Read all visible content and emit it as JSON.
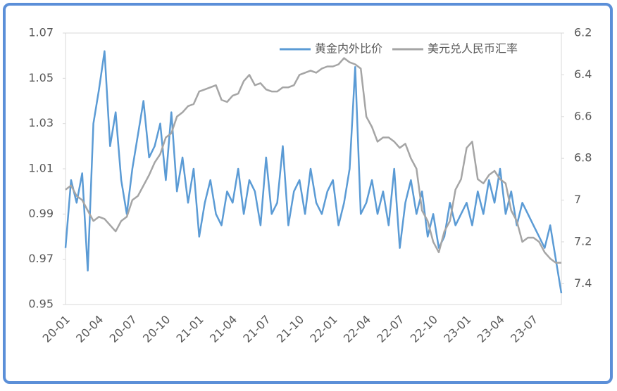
{
  "chart_data": {
    "type": "line",
    "categories": [
      "20-01",
      null,
      null,
      null,
      null,
      null,
      "20-04",
      null,
      null,
      null,
      null,
      null,
      "20-07",
      null,
      null,
      null,
      null,
      null,
      "20-10",
      null,
      null,
      null,
      null,
      null,
      "21-01",
      null,
      null,
      null,
      null,
      null,
      "21-04",
      null,
      null,
      null,
      null,
      null,
      "21-07",
      null,
      null,
      null,
      null,
      null,
      "21-10",
      null,
      null,
      null,
      null,
      null,
      "22-01",
      null,
      null,
      null,
      null,
      null,
      "22-04",
      null,
      null,
      null,
      null,
      null,
      "22-07",
      null,
      null,
      null,
      null,
      null,
      "22-10",
      null,
      null,
      null,
      null,
      null,
      "23-01",
      null,
      null,
      null,
      null,
      null,
      "23-04",
      null,
      null,
      null,
      null,
      null,
      "23-07",
      null,
      null,
      null,
      null,
      null
    ],
    "series": [
      {
        "name": "黄金内外比价",
        "color": "#5b9bd5",
        "values": [
          0.975,
          1.005,
          0.995,
          1.008,
          0.965,
          1.03,
          1.045,
          1.062,
          1.02,
          1.035,
          1.005,
          0.99,
          1.01,
          1.025,
          1.04,
          1.015,
          1.02,
          1.03,
          1.005,
          1.035,
          1.0,
          1.015,
          0.995,
          1.01,
          0.98,
          0.995,
          1.005,
          0.99,
          0.985,
          1.0,
          0.995,
          1.01,
          0.99,
          1.005,
          1.0,
          0.985,
          1.015,
          0.99,
          0.995,
          1.02,
          0.985,
          1.0,
          1.005,
          0.99,
          1.01,
          0.995,
          0.99,
          1.0,
          1.005,
          0.985,
          0.995,
          1.01,
          1.055,
          0.99,
          0.995,
          1.005,
          0.99,
          1.0,
          0.985,
          1.01,
          0.975,
          0.995,
          1.005,
          0.99,
          1.0,
          0.98,
          0.99,
          0.975,
          0.98,
          0.995,
          0.985,
          0.99,
          0.995,
          0.985,
          1.0,
          0.99,
          1.005,
          0.995,
          1.01,
          0.99,
          1.0,
          0.985,
          0.995,
          0.99,
          0.985,
          0.98,
          0.975,
          0.985,
          0.97,
          0.955
        ]
      },
      {
        "name": "美元兑人民币汇率",
        "color": "#a5a5a5",
        "axis": "y2",
        "values": [
          6.95,
          6.93,
          6.98,
          7.0,
          7.05,
          7.1,
          7.08,
          7.09,
          7.12,
          7.15,
          7.1,
          7.08,
          7.0,
          6.98,
          6.93,
          6.88,
          6.82,
          6.78,
          6.7,
          6.68,
          6.6,
          6.58,
          6.55,
          6.54,
          6.48,
          6.47,
          6.46,
          6.45,
          6.52,
          6.53,
          6.5,
          6.49,
          6.43,
          6.4,
          6.45,
          6.44,
          6.47,
          6.48,
          6.48,
          6.46,
          6.46,
          6.45,
          6.4,
          6.39,
          6.38,
          6.39,
          6.37,
          6.36,
          6.36,
          6.35,
          6.32,
          6.34,
          6.35,
          6.37,
          6.6,
          6.65,
          6.72,
          6.7,
          6.7,
          6.72,
          6.75,
          6.73,
          6.8,
          6.85,
          7.05,
          7.1,
          7.2,
          7.25,
          7.15,
          7.1,
          6.95,
          6.9,
          6.75,
          6.72,
          6.9,
          6.92,
          6.88,
          6.86,
          6.9,
          6.92,
          7.05,
          7.1,
          7.2,
          7.18,
          7.18,
          7.2,
          7.25,
          7.28,
          7.3,
          7.3
        ]
      }
    ],
    "ylim": [
      0.95,
      1.07
    ],
    "yticks": [
      0.95,
      0.97,
      0.99,
      1.01,
      1.03,
      1.05,
      1.07
    ],
    "y2lim": [
      6.2,
      7.5
    ],
    "y2ticks": [
      6.2,
      6.4,
      6.6,
      6.8,
      7,
      7.2,
      7.4
    ],
    "y2_inverted": true,
    "legend": "top-right"
  }
}
